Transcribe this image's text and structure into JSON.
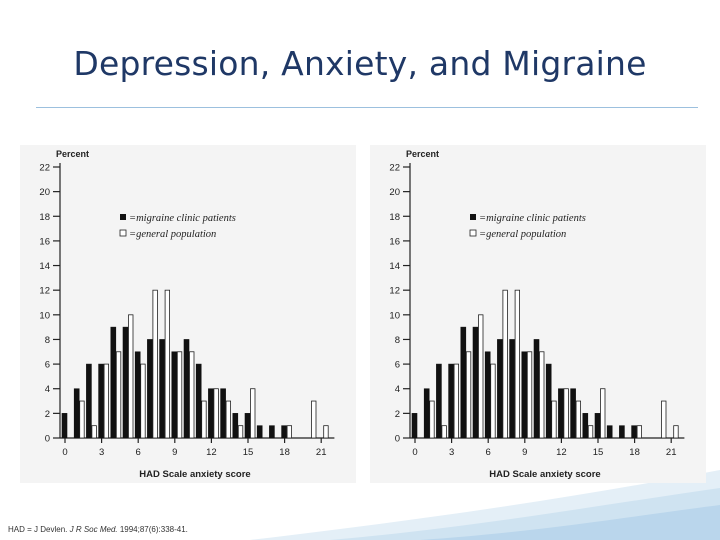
{
  "slide": {
    "title": "Depression, Anxiety, and Migraine",
    "citation_prefix": "HAD = ",
    "citation_rest": "J Devlen. ",
    "citation_journal": "J R Soc Med.",
    "citation_end": " 1994;87(6):338-41."
  },
  "colors": {
    "title": "#1f3866",
    "rule": "#9cc0de",
    "migraine_bar": "#111111",
    "general_bar": "#ffffff",
    "panel_bg": "#f4f4f4",
    "wave": "#cfe3f1"
  },
  "chart_data": [
    {
      "type": "bar",
      "ylabel": "Percent",
      "xlabel": "HAD Scale anxiety score",
      "x_ticks": [
        0,
        3,
        6,
        9,
        12,
        15,
        18,
        21
      ],
      "y_ticks": [
        0,
        2,
        4,
        6,
        8,
        10,
        12,
        14,
        16,
        18,
        20,
        22
      ],
      "ylim": [
        0,
        22
      ],
      "xlim": [
        -0.5,
        21.5
      ],
      "categories": [
        0,
        1,
        2,
        3,
        4,
        5,
        6,
        7,
        8,
        9,
        10,
        11,
        12,
        13,
        14,
        15,
        16,
        17,
        18,
        19,
        20,
        21
      ],
      "series": [
        {
          "name": "migraine clinic patients",
          "values": [
            2,
            4,
            6,
            6,
            9,
            9,
            7,
            8,
            8,
            7,
            8,
            6,
            4,
            4,
            2,
            2,
            1,
            1,
            1,
            0,
            0,
            0
          ]
        },
        {
          "name": "general population",
          "values": [
            0,
            3,
            1,
            6,
            7,
            10,
            6,
            12,
            12,
            7,
            7,
            3,
            4,
            3,
            1,
            4,
            0,
            0,
            1,
            0,
            3,
            1
          ]
        }
      ],
      "legend": "upper-center"
    },
    {
      "type": "bar",
      "ylabel": "Percent",
      "xlabel": "HAD Scale anxiety score",
      "x_ticks": [
        0,
        3,
        6,
        9,
        12,
        15,
        18,
        21
      ],
      "y_ticks": [
        0,
        2,
        4,
        6,
        8,
        10,
        12,
        14,
        16,
        18,
        20,
        22
      ],
      "ylim": [
        0,
        22
      ],
      "xlim": [
        -0.5,
        21.5
      ],
      "categories": [
        0,
        1,
        2,
        3,
        4,
        5,
        6,
        7,
        8,
        9,
        10,
        11,
        12,
        13,
        14,
        15,
        16,
        17,
        18,
        19,
        20,
        21
      ],
      "series": [
        {
          "name": "migraine clinic patients",
          "values": [
            2,
            4,
            6,
            6,
            9,
            9,
            7,
            8,
            8,
            7,
            8,
            6,
            4,
            4,
            2,
            2,
            1,
            1,
            1,
            0,
            0,
            0
          ]
        },
        {
          "name": "general population",
          "values": [
            0,
            3,
            1,
            6,
            7,
            10,
            6,
            12,
            12,
            7,
            7,
            3,
            4,
            3,
            1,
            4,
            0,
            0,
            1,
            0,
            3,
            1
          ]
        }
      ],
      "legend": "upper-center"
    }
  ]
}
